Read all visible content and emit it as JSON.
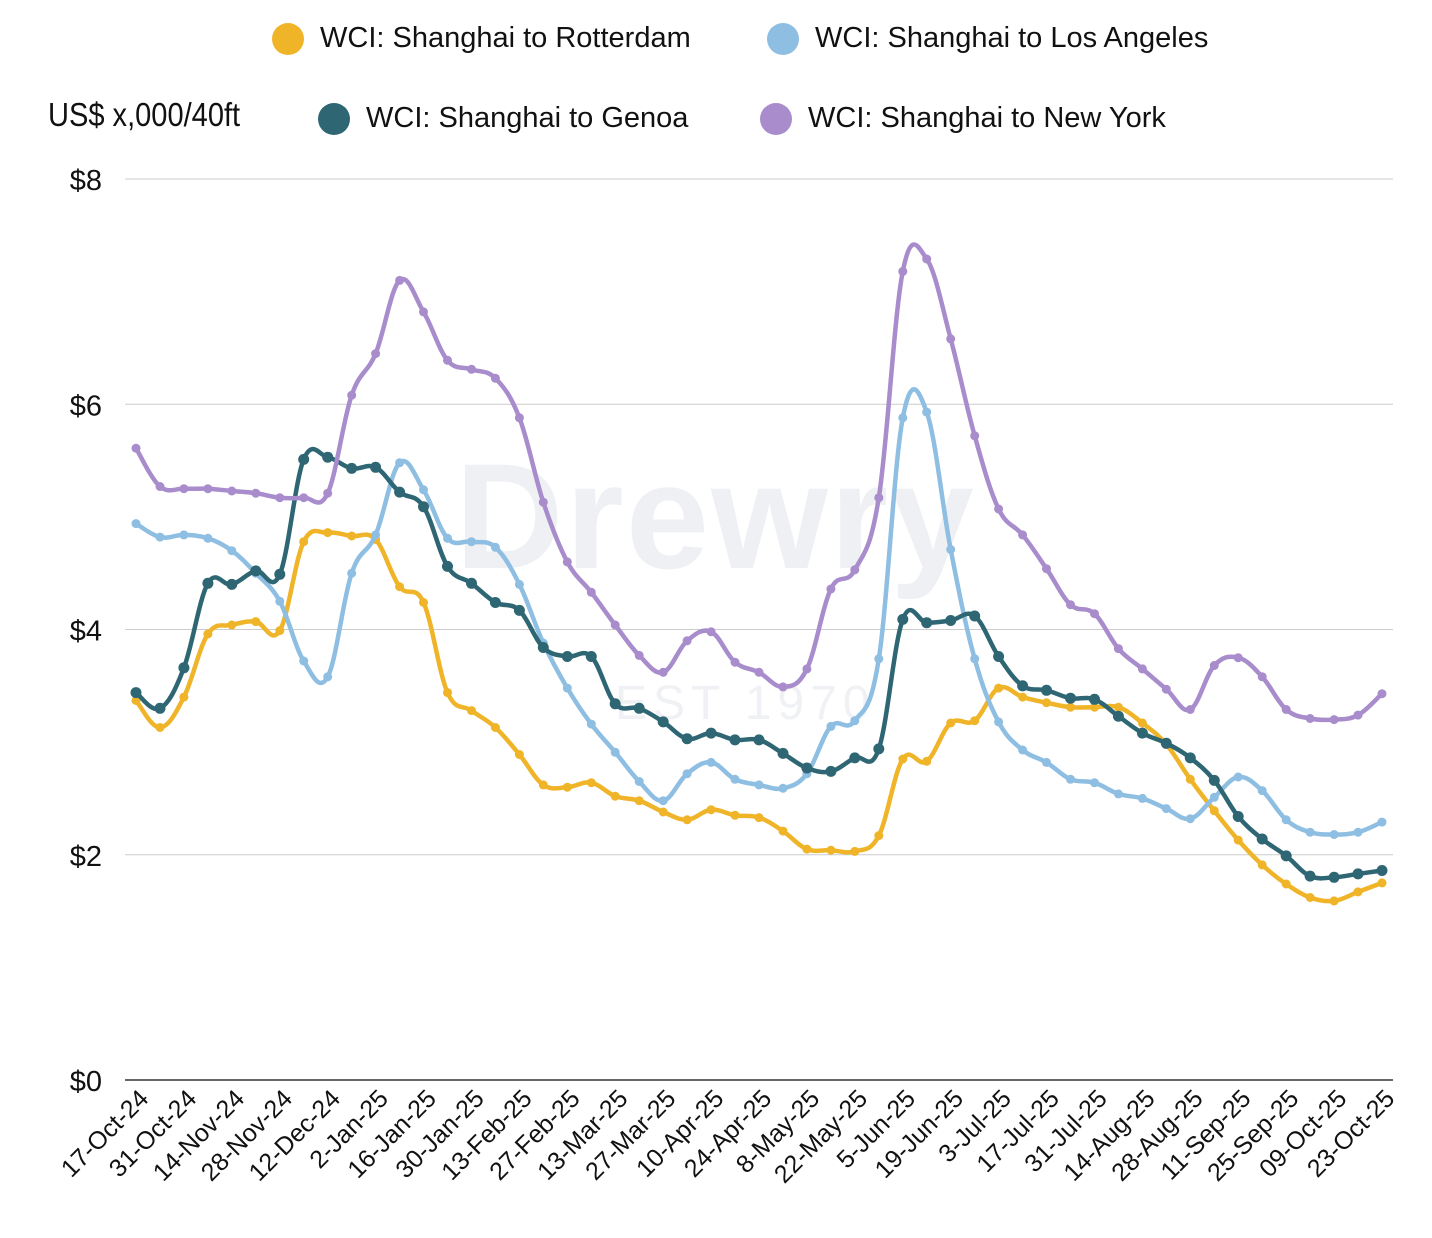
{
  "chart_data": {
    "type": "line",
    "ylabel": "US$ x,000/40ft",
    "ylim": [
      0,
      8
    ],
    "yticks": [
      0,
      2,
      4,
      6,
      8
    ],
    "ytick_labels": [
      "$0",
      "$2",
      "$4",
      "$6",
      "$8"
    ],
    "grid": true,
    "legend_position": "top",
    "watermark": "Drewry",
    "watermark_sub": "EST 1970",
    "xtick_labels": [
      "17-Oct-24",
      "31-Oct-24",
      "14-Nov-24",
      "28-Nov-24",
      "12-Dec-24",
      "2-Jan-25",
      "16-Jan-25",
      "30-Jan-25",
      "13-Feb-25",
      "27-Feb-25",
      "13-Mar-25",
      "27-Mar-25",
      "10-Apr-25",
      "24-Apr-25",
      "8-May-25",
      "22-May-25",
      "5-Jun-25",
      "19-Jun-25",
      "3-Jul-25",
      "17-Jul-25",
      "31-Jul-25",
      "14-Aug-25",
      "28-Aug-25",
      "11-Sep-25",
      "25-Sep-25",
      "09-Oct-25",
      "23-Oct-25"
    ],
    "series": [
      {
        "name": "WCI: Shanghai to Rotterdam",
        "color": "#f0b429",
        "values": [
          3.37,
          3.13,
          3.4,
          3.96,
          4.04,
          4.07,
          3.99,
          4.78,
          4.86,
          4.83,
          4.8,
          4.38,
          4.24,
          3.44,
          3.28,
          3.13,
          2.89,
          2.62,
          2.6,
          2.64,
          2.52,
          2.48,
          2.38,
          2.31,
          2.4,
          2.35,
          2.33,
          2.21,
          2.05,
          2.04,
          2.03,
          2.17,
          2.85,
          2.83,
          3.17,
          3.19,
          3.48,
          3.4,
          3.35,
          3.31,
          3.31,
          3.31,
          3.17,
          2.98,
          2.67,
          2.39,
          2.13,
          1.91,
          1.74,
          1.62,
          1.59,
          1.67,
          1.75
        ]
      },
      {
        "name": "WCI: Shanghai to Los Angeles",
        "color": "#8ebee2",
        "values": [
          4.94,
          4.82,
          4.84,
          4.81,
          4.7,
          4.5,
          4.25,
          3.72,
          3.58,
          4.5,
          4.84,
          5.48,
          5.24,
          4.81,
          4.78,
          4.73,
          4.4,
          3.88,
          3.48,
          3.16,
          2.91,
          2.65,
          2.48,
          2.72,
          2.82,
          2.67,
          2.62,
          2.59,
          2.72,
          3.14,
          3.19,
          3.74,
          5.88,
          5.93,
          4.71,
          3.74,
          3.18,
          2.93,
          2.82,
          2.67,
          2.64,
          2.54,
          2.5,
          2.41,
          2.32,
          2.51,
          2.69,
          2.57,
          2.31,
          2.2,
          2.18,
          2.2,
          2.29
        ]
      },
      {
        "name": "WCI: Shanghai to Genoa",
        "color": "#2e6673",
        "values": [
          3.44,
          3.3,
          3.66,
          4.41,
          4.4,
          4.52,
          4.49,
          5.51,
          5.53,
          5.43,
          5.44,
          5.22,
          5.09,
          4.56,
          4.41,
          4.24,
          4.17,
          3.84,
          3.76,
          3.76,
          3.34,
          3.3,
          3.18,
          3.03,
          3.08,
          3.02,
          3.02,
          2.9,
          2.77,
          2.74,
          2.86,
          2.94,
          4.09,
          4.06,
          4.08,
          4.12,
          3.76,
          3.5,
          3.46,
          3.39,
          3.38,
          3.23,
          3.08,
          2.99,
          2.86,
          2.66,
          2.34,
          2.14,
          1.99,
          1.81,
          1.8,
          1.83,
          1.86
        ]
      },
      {
        "name": "WCI: Shanghai to New York",
        "color": "#a88ccc",
        "values": [
          5.61,
          5.27,
          5.25,
          5.25,
          5.23,
          5.21,
          5.17,
          5.17,
          5.21,
          6.08,
          6.45,
          7.1,
          6.82,
          6.39,
          6.31,
          6.23,
          5.88,
          5.13,
          4.6,
          4.33,
          4.04,
          3.77,
          3.62,
          3.9,
          3.98,
          3.71,
          3.62,
          3.49,
          3.65,
          4.36,
          4.53,
          5.17,
          7.18,
          7.29,
          6.58,
          5.72,
          5.07,
          4.84,
          4.54,
          4.22,
          4.14,
          3.83,
          3.65,
          3.47,
          3.29,
          3.68,
          3.75,
          3.58,
          3.29,
          3.21,
          3.2,
          3.24,
          3.43
        ]
      }
    ]
  }
}
